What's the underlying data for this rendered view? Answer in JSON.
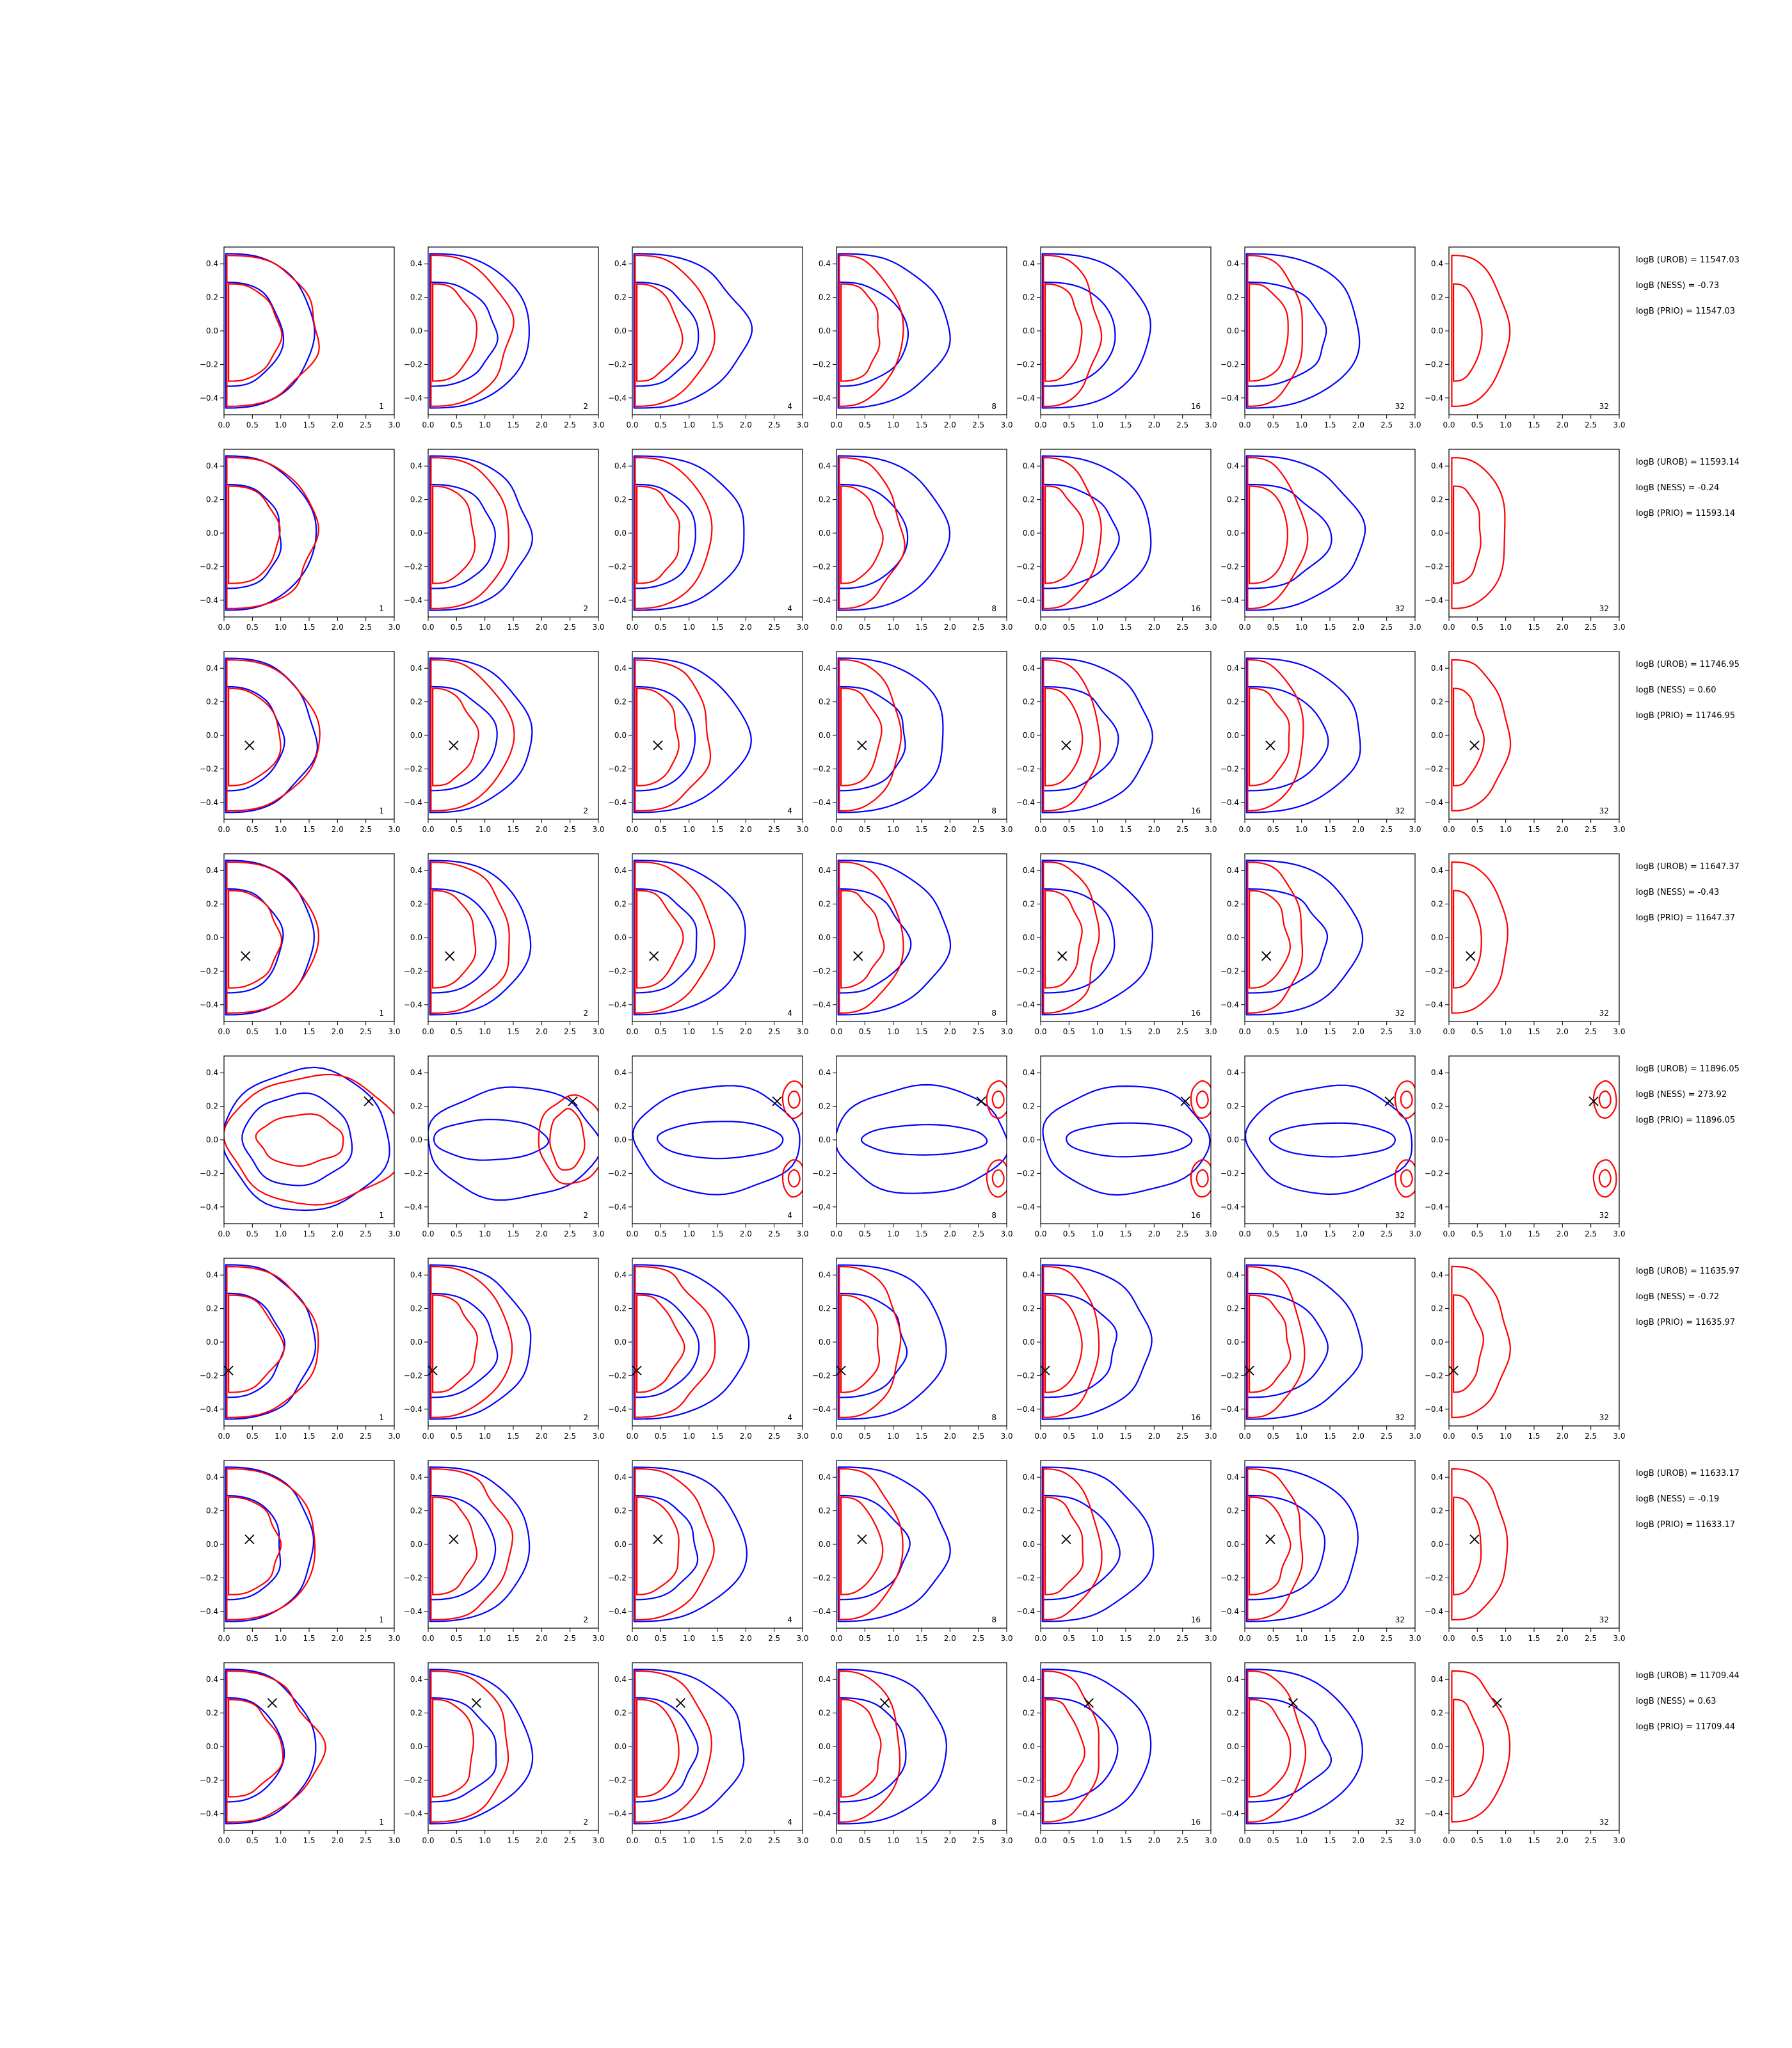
{
  "chart_data": {
    "type": "contour",
    "xlim": [
      0.0,
      3.0
    ],
    "ylim": [
      -0.5,
      0.5
    ],
    "xticks": [
      "0.0",
      "0.5",
      "1.0",
      "1.5",
      "2.0",
      "2.5",
      "3.0"
    ],
    "yticks": [
      "0.4",
      "0.2",
      "0.0",
      "−0.2",
      "−0.4"
    ],
    "colors": {
      "blue": "#0000ff",
      "red": "#ff0000",
      "marker": "#000000"
    },
    "column_labels": [
      "1",
      "2",
      "4",
      "8",
      "16",
      "32",
      "32"
    ],
    "rows": [
      {
        "marker": null,
        "type": "D",
        "stats": [
          "logB (UROB) = 11547.03",
          "logB (NESS) = -0.73",
          "logB (PRIO) = 11547.03"
        ]
      },
      {
        "marker": null,
        "type": "D",
        "stats": [
          "logB (UROB) = 11593.14",
          "logB (NESS) = -0.24",
          "logB (PRIO) = 11593.14"
        ]
      },
      {
        "marker": [
          0.45,
          -0.06
        ],
        "type": "D",
        "stats": [
          "logB (UROB) = 11746.95",
          "logB (NESS) = 0.60",
          "logB (PRIO) = 11746.95"
        ]
      },
      {
        "marker": [
          0.38,
          -0.11
        ],
        "type": "D",
        "stats": [
          "logB (UROB) = 11647.37",
          "logB (NESS) = -0.43",
          "logB (PRIO) = 11647.37"
        ]
      },
      {
        "marker": [
          2.55,
          0.23
        ],
        "type": "E",
        "stats": [
          "logB (UROB) = 11896.05",
          "logB (NESS) = 273.92",
          "logB (PRIO) = 11896.05"
        ]
      },
      {
        "marker": [
          0.08,
          -0.17
        ],
        "type": "D",
        "stats": [
          "logB (UROB) = 11635.97",
          "logB (NESS) = -0.72",
          "logB (PRIO) = 11635.97"
        ]
      },
      {
        "marker": [
          0.45,
          0.03
        ],
        "type": "D",
        "stats": [
          "logB (UROB) = 11633.17",
          "logB (NESS) = -0.19",
          "logB (PRIO) = 11633.17"
        ]
      },
      {
        "marker": [
          0.85,
          0.26
        ],
        "type": "D",
        "stats": [
          "logB (UROB) = 11709.44",
          "logB (NESS) = 0.63",
          "logB (PRIO) = 11709.44"
        ]
      }
    ]
  }
}
